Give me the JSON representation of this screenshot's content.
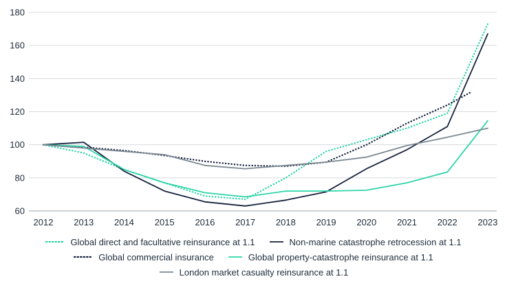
{
  "chart_data": {
    "type": "line",
    "title": "",
    "xlabel": "",
    "ylabel": "",
    "ylim": [
      60,
      180
    ],
    "yticks": [
      60,
      80,
      100,
      120,
      140,
      160,
      180
    ],
    "x": [
      2012,
      2013,
      2014,
      2015,
      2016,
      2017,
      2018,
      2019,
      2020,
      2021,
      2022,
      2023
    ],
    "x_tick_labels": [
      "2012",
      "2013",
      "2014",
      "2015",
      "2016",
      "2017",
      "2018",
      "2019",
      "2020",
      "2021",
      "2022",
      "2023"
    ],
    "grid": "horizontal",
    "legend_placement": "bottom",
    "series": [
      {
        "name": "Global direct and facultative reinsurance at 1.1",
        "color": "#2dd4a8",
        "style": "dotted",
        "x": [
          2012,
          2013,
          2014,
          2015,
          2016,
          2017,
          2018,
          2019,
          2020,
          2021,
          2022,
          2023
        ],
        "values": [
          100,
          95,
          85,
          77,
          69,
          67,
          80,
          96,
          103,
          110,
          119,
          173
        ]
      },
      {
        "name": "Non-marine catastrophe retrocession at 1.1",
        "color": "#14213d",
        "style": "solid",
        "x": [
          2012,
          2013,
          2014,
          2015,
          2016,
          2017,
          2018,
          2019,
          2020,
          2021,
          2022,
          2023
        ],
        "values": [
          100,
          101.5,
          84,
          72,
          65.5,
          63,
          66.5,
          71.5,
          85.5,
          97,
          111,
          167
        ]
      },
      {
        "name": "Global commercial insurance",
        "color": "#14213d",
        "style": "dotted",
        "x": [
          2012,
          2013,
          2014,
          2015,
          2016,
          2017,
          2018,
          2019,
          2020,
          2021,
          2022,
          2022.6
        ],
        "values": [
          100,
          98.5,
          96.5,
          93.5,
          90,
          87.5,
          87,
          89.5,
          100,
          113,
          124,
          132
        ]
      },
      {
        "name": "Global property-catastrophe reinsurance at 1.1",
        "color": "#2dd4a8",
        "style": "solid",
        "x": [
          2012,
          2013,
          2014,
          2015,
          2016,
          2017,
          2018,
          2019,
          2020,
          2021,
          2022,
          2023
        ],
        "values": [
          100,
          99,
          85,
          77,
          71,
          68.5,
          72,
          72,
          72.5,
          77,
          83.5,
          114.5
        ]
      },
      {
        "name": "London market casualty reinsurance at 1.1",
        "color": "#7a8893",
        "style": "solid",
        "x": [
          2012,
          2013,
          2014,
          2015,
          2016,
          2017,
          2018,
          2019,
          2020,
          2021,
          2022,
          2023
        ],
        "values": [
          100,
          98,
          96,
          94,
          87.5,
          85.5,
          87.5,
          89.5,
          92.5,
          99.5,
          104.5,
          110
        ]
      }
    ]
  }
}
